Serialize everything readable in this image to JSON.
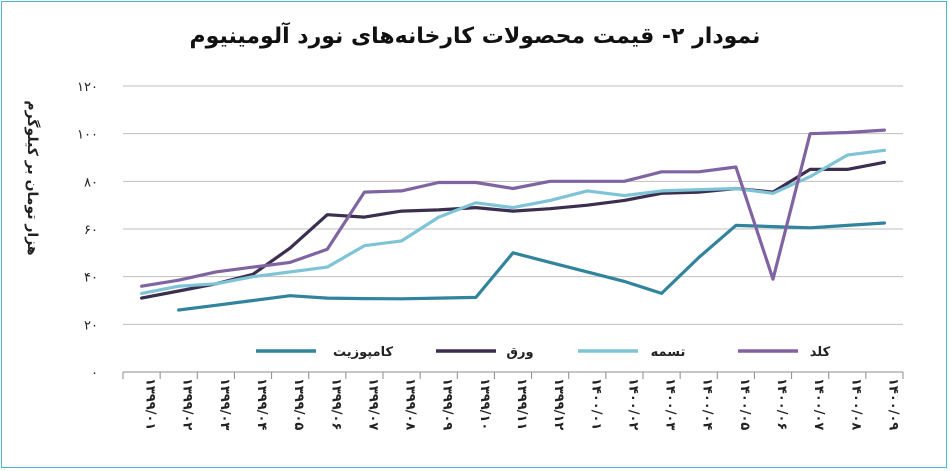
{
  "chart_data": {
    "type": "line",
    "title": "نمودار ۲- قیمت محصولات کارخانه‌های نورد آلومینیوم",
    "ylabel": "هزار تومان بر کیلوگرم",
    "xlabel": "",
    "ylim": [
      0,
      120
    ],
    "yticks": [
      0,
      20,
      40,
      60,
      80,
      100,
      120
    ],
    "ytick_labels": [
      "۰",
      "۲۰",
      "۴۰",
      "۶۰",
      "۸۰",
      "۱۰۰",
      "۱۲۰"
    ],
    "grid": "horizontal",
    "legend_position": "inside-bottom",
    "categories": [
      "۱۳۹۹/۰۱",
      "۱۳۹۹/۰۲",
      "۱۳۹۹/۰۳",
      "۱۳۹۹/۰۴",
      "۱۳۹۹/۰۵",
      "۱۳۹۹/۰۶",
      "۱۳۹۹/۰۷",
      "۱۳۹۹/۰۸",
      "۱۳۹۹/۰۹",
      "۱۳۹۹/۱۰",
      "۱۳۹۹/۱۱",
      "۱۳۹۹/۱۲",
      "۱۴۰۰/۰۱",
      "۱۴۰۰/۰۲",
      "۱۴۰۰/۰۳",
      "۱۴۰۰/۰۴",
      "۱۴۰۰/۰۵",
      "۱۴۰۰/۰۶",
      "۱۴۰۰/۰۷",
      "۱۴۰۰/۰۸",
      "۱۴۰۰/۰۹"
    ],
    "series": [
      {
        "name": "کامپوزیت",
        "color": "#31849b",
        "values": [
          null,
          26,
          28,
          30,
          32,
          31,
          30.8,
          30.7,
          31,
          31.3,
          50,
          46,
          42,
          38,
          33,
          48,
          61.5,
          61,
          60.5,
          61.5,
          62.5
        ]
      },
      {
        "name": "ورق",
        "color": "#3b2e4f",
        "values": [
          31,
          34,
          37,
          41,
          52,
          66,
          65,
          67.5,
          68,
          69,
          67.5,
          68.5,
          70,
          72,
          75,
          75.5,
          77,
          75.5,
          85,
          85,
          88
        ]
      },
      {
        "name": "تسمه",
        "color": "#7ec3d6",
        "values": [
          33,
          36,
          37,
          40,
          42,
          44,
          53,
          55,
          65,
          71,
          69,
          72,
          76,
          74,
          76,
          76.5,
          77,
          75,
          82,
          91,
          93
        ]
      },
      {
        "name": "کلد",
        "color": "#8064a2",
        "values": [
          36,
          38.5,
          42,
          44,
          46,
          51.5,
          75.5,
          76,
          79.5,
          79.5,
          77,
          80,
          80,
          80,
          84,
          84,
          86,
          39,
          100,
          100.5,
          101.5
        ]
      }
    ]
  }
}
